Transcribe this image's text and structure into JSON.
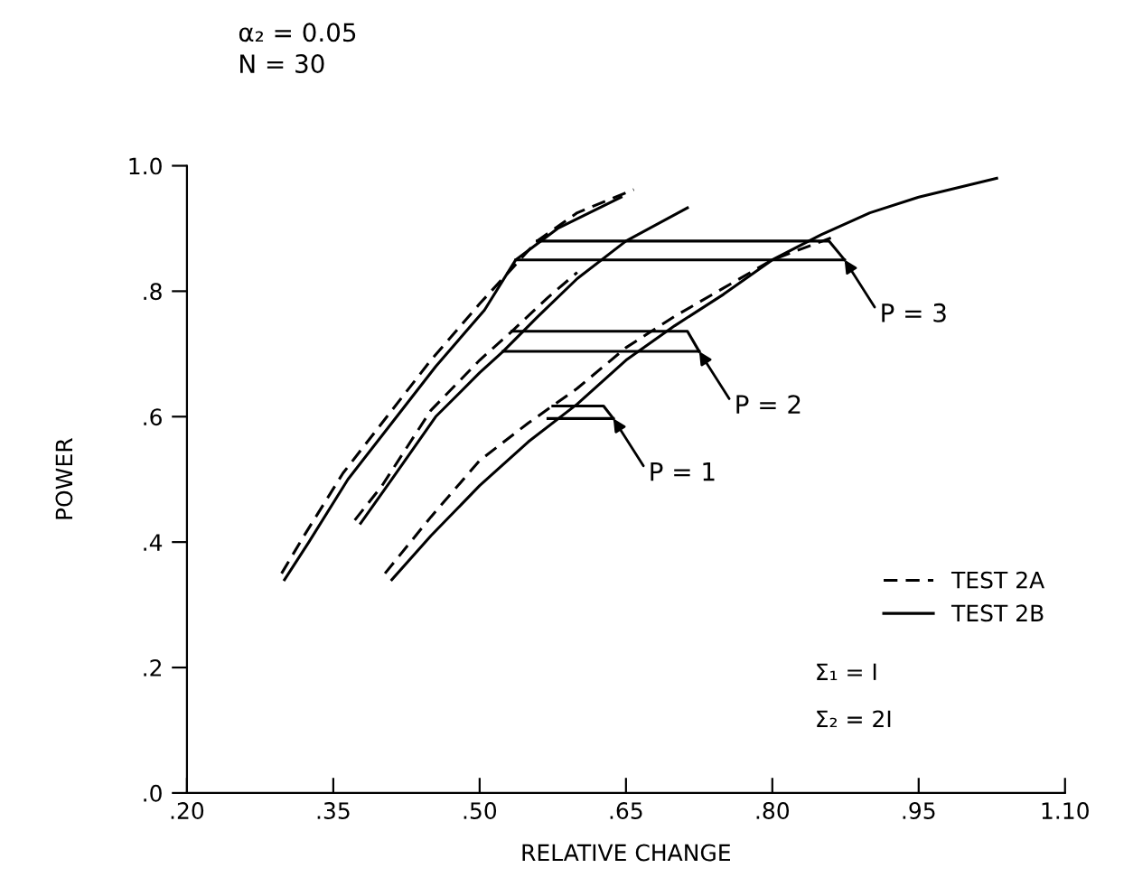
{
  "chart_data": {
    "type": "line",
    "xlabel": "RELATIVE CHANGE",
    "ylabel": "POWER",
    "xlim": [
      0.2,
      1.1
    ],
    "ylim": [
      0,
      1.0
    ],
    "xticks": [
      {
        "value": 0.2,
        "label": ".20"
      },
      {
        "value": 0.35,
        "label": ".35"
      },
      {
        "value": 0.5,
        "label": ".50"
      },
      {
        "value": 0.65,
        "label": ".65"
      },
      {
        "value": 0.8,
        "label": ".80"
      },
      {
        "value": 0.95,
        "label": ".95"
      },
      {
        "value": 1.1,
        "label": "1.10"
      }
    ],
    "yticks": [
      {
        "value": 0,
        "label": ".0"
      },
      {
        "value": 0.2,
        "label": ".2"
      },
      {
        "value": 0.4,
        "label": ".4"
      },
      {
        "value": 0.6,
        "label": ".6"
      },
      {
        "value": 0.8,
        "label": ".8"
      },
      {
        "value": 1.0,
        "label": "1.0"
      }
    ],
    "grid": false,
    "legend": "right",
    "marker": "none",
    "series": [
      {
        "name": "TEST 2A",
        "color": "#000000",
        "line_style": "dashed",
        "x": [
          0.297,
          0.32,
          0.36,
          0.405,
          0.45,
          0.5,
          0.559,
          0.6,
          0.658
        ],
        "values": [
          0.35,
          0.41,
          0.51,
          0.6,
          0.69,
          0.78,
          0.88,
          0.925,
          0.962
        ]
      },
      {
        "name": "TEST 2B",
        "color": "#000000",
        "line_style": "solid",
        "x": [
          0.3,
          0.325,
          0.365,
          0.41,
          0.455,
          0.505,
          0.537,
          0.58,
          0.645
        ],
        "values": [
          0.34,
          0.4,
          0.5,
          0.59,
          0.68,
          0.77,
          0.85,
          0.9,
          0.95
        ]
      },
      {
        "color": "#000000",
        "line_style": "dashed",
        "x": [
          0.372,
          0.4,
          0.45,
          0.5,
          0.533,
          0.57,
          0.6
        ],
        "values": [
          0.435,
          0.49,
          0.61,
          0.69,
          0.736,
          0.79,
          0.83
        ]
      },
      {
        "color": "#000000",
        "line_style": "solid",
        "x": [
          0.378,
          0.41,
          0.455,
          0.5,
          0.524,
          0.56,
          0.6,
          0.65,
          0.713
        ],
        "values": [
          0.43,
          0.5,
          0.6,
          0.67,
          0.704,
          0.76,
          0.82,
          0.88,
          0.933
        ]
      },
      {
        "color": "#000000",
        "line_style": "dashed",
        "x": [
          0.403,
          0.45,
          0.5,
          0.55,
          0.6,
          0.65,
          0.7,
          0.75,
          0.8,
          0.86
        ],
        "values": [
          0.35,
          0.44,
          0.53,
          0.59,
          0.645,
          0.71,
          0.76,
          0.805,
          0.85,
          0.885
        ]
      },
      {
        "color": "#000000",
        "line_style": "solid",
        "x": [
          0.41,
          0.45,
          0.5,
          0.55,
          0.6,
          0.65,
          0.7,
          0.75,
          0.8,
          0.85,
          0.9,
          0.95,
          1.03
        ],
        "values": [
          0.34,
          0.41,
          0.49,
          0.56,
          0.62,
          0.69,
          0.745,
          0.795,
          0.85,
          0.89,
          0.925,
          0.95,
          0.98
        ]
      },
      {
        "color": "#000000",
        "line_style": "solid",
        "x": [
          0.559,
          0.858,
          0.874
        ],
        "values": [
          0.88,
          0.88,
          0.85
        ]
      },
      {
        "color": "#000000",
        "line_style": "solid",
        "x": [
          0.537,
          0.874
        ],
        "values": [
          0.85,
          0.85
        ]
      },
      {
        "color": "#000000",
        "line_style": "solid",
        "x": [
          0.533,
          0.713,
          0.725
        ],
        "values": [
          0.736,
          0.736,
          0.704
        ]
      },
      {
        "color": "#000000",
        "line_style": "solid",
        "x": [
          0.524,
          0.725
        ],
        "values": [
          0.704,
          0.704
        ]
      },
      {
        "color": "#000000",
        "line_style": "solid",
        "x": [
          0.575,
          0.627,
          0.637
        ],
        "values": [
          0.617,
          0.617,
          0.597
        ]
      },
      {
        "color": "#000000",
        "line_style": "solid",
        "x": [
          0.57,
          0.637
        ],
        "values": [
          0.597,
          0.597
        ]
      }
    ],
    "annotations": [
      "α₂ = 0.05",
      "N = 30",
      "Σ₁ = I",
      "Σ₂ = 2I",
      {
        "text": "P = 3",
        "x": 0.874,
        "y": 0.85
      },
      {
        "text": "P = 2",
        "x": 0.725,
        "y": 0.704
      },
      {
        "text": "P = 1",
        "x": 0.637,
        "y": 0.597
      }
    ]
  }
}
